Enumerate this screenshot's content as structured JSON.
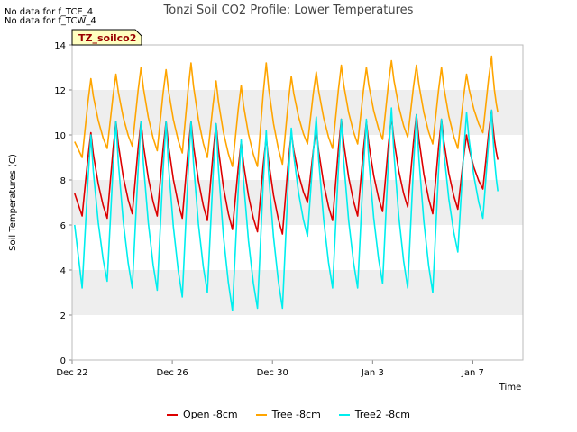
{
  "notes": [
    "No data for f_TCE_4",
    "No data for f_TCW_4"
  ],
  "site_label": "TZ_soilco2",
  "chart_data": {
    "type": "line",
    "title": "Tonzi Soil CO2 Profile: Lower Temperatures",
    "xlabel": "Time",
    "ylabel": "Soil Temperatures (C)",
    "xlim": [
      0,
      18
    ],
    "ylim": [
      0,
      14
    ],
    "x_ticks": [
      {
        "x": 0,
        "label": "Dec 22"
      },
      {
        "x": 4,
        "label": "Dec 26"
      },
      {
        "x": 8,
        "label": "Dec 30"
      },
      {
        "x": 12,
        "label": "Jan 3"
      },
      {
        "x": 16,
        "label": "Jan 7"
      }
    ],
    "y_ticks": [
      0,
      2,
      4,
      6,
      8,
      10,
      12,
      14
    ],
    "grid": "horizontal bands",
    "legend_position": "bottom",
    "series": [
      {
        "name": "Open -8cm",
        "color": "#dd0000",
        "days": [
          {
            "d": 0.4,
            "min": 6.4,
            "start": 7.4,
            "peak": 10.1
          },
          {
            "d": 1.4,
            "min": 6.3,
            "peak": 10.6
          },
          {
            "d": 2.4,
            "min": 6.5,
            "peak": 10.6
          },
          {
            "d": 3.4,
            "min": 6.4,
            "peak": 10.6
          },
          {
            "d": 4.4,
            "min": 6.3,
            "peak": 10.6
          },
          {
            "d": 5.4,
            "min": 6.2,
            "peak": 10.5
          },
          {
            "d": 6.4,
            "min": 5.8,
            "peak": 9.7
          },
          {
            "d": 7.4,
            "min": 5.7,
            "peak": 9.9
          },
          {
            "d": 8.4,
            "min": 5.6,
            "peak": 10.1
          },
          {
            "d": 9.4,
            "min": 7.0,
            "peak": 10.3
          },
          {
            "d": 10.4,
            "min": 6.2,
            "peak": 10.7
          },
          {
            "d": 11.4,
            "min": 6.4,
            "peak": 10.6
          },
          {
            "d": 12.4,
            "min": 6.6,
            "peak": 10.8
          },
          {
            "d": 13.4,
            "min": 6.8,
            "peak": 10.9
          },
          {
            "d": 14.4,
            "min": 6.5,
            "peak": 10.7
          },
          {
            "d": 15.4,
            "min": 6.7,
            "peak": 10.0
          },
          {
            "d": 16.4,
            "min": 7.6,
            "peak": 11.1
          },
          {
            "d": 17.0,
            "end": 8.9
          }
        ]
      },
      {
        "name": "Tree -8cm",
        "color": "#ffa500",
        "days": [
          {
            "d": 0.4,
            "min": 9.0,
            "start": 9.7,
            "peak": 12.5
          },
          {
            "d": 1.4,
            "min": 9.4,
            "peak": 12.7
          },
          {
            "d": 2.4,
            "min": 9.5,
            "peak": 13.0
          },
          {
            "d": 3.4,
            "min": 9.3,
            "peak": 12.9
          },
          {
            "d": 4.4,
            "min": 9.2,
            "peak": 13.2
          },
          {
            "d": 5.4,
            "min": 9.0,
            "peak": 12.4
          },
          {
            "d": 6.4,
            "min": 8.6,
            "peak": 12.2
          },
          {
            "d": 7.4,
            "min": 8.6,
            "peak": 13.2
          },
          {
            "d": 8.4,
            "min": 8.7,
            "peak": 12.6
          },
          {
            "d": 9.4,
            "min": 9.6,
            "peak": 12.8
          },
          {
            "d": 10.4,
            "min": 9.4,
            "peak": 13.1
          },
          {
            "d": 11.4,
            "min": 9.6,
            "peak": 13.0
          },
          {
            "d": 12.4,
            "min": 9.8,
            "peak": 13.3
          },
          {
            "d": 13.4,
            "min": 9.9,
            "peak": 13.1
          },
          {
            "d": 14.4,
            "min": 9.6,
            "peak": 13.0
          },
          {
            "d": 15.4,
            "min": 9.4,
            "peak": 12.7
          },
          {
            "d": 16.4,
            "min": 10.1,
            "peak": 13.5
          },
          {
            "d": 17.0,
            "end": 11.0
          }
        ]
      },
      {
        "name": "Tree2 -8cm",
        "color": "#00eeee",
        "days": [
          {
            "d": 0.4,
            "min": 3.2,
            "start": 6.0,
            "peak": 10.0
          },
          {
            "d": 1.4,
            "min": 3.5,
            "peak": 10.6
          },
          {
            "d": 2.4,
            "min": 3.2,
            "peak": 10.6
          },
          {
            "d": 3.4,
            "min": 3.1,
            "peak": 10.6
          },
          {
            "d": 4.4,
            "min": 2.8,
            "peak": 10.6
          },
          {
            "d": 5.4,
            "min": 3.0,
            "peak": 10.5
          },
          {
            "d": 6.4,
            "min": 2.2,
            "peak": 9.8
          },
          {
            "d": 7.4,
            "min": 2.3,
            "peak": 10.2
          },
          {
            "d": 8.4,
            "min": 2.3,
            "peak": 10.3
          },
          {
            "d": 9.4,
            "min": 5.5,
            "peak": 10.8
          },
          {
            "d": 10.4,
            "min": 3.2,
            "peak": 10.7
          },
          {
            "d": 11.4,
            "min": 3.2,
            "peak": 10.7
          },
          {
            "d": 12.4,
            "min": 3.4,
            "peak": 11.2
          },
          {
            "d": 13.4,
            "min": 3.2,
            "peak": 10.9
          },
          {
            "d": 14.4,
            "min": 3.0,
            "peak": 10.7
          },
          {
            "d": 15.4,
            "min": 4.8,
            "peak": 11.0
          },
          {
            "d": 16.4,
            "min": 6.3,
            "peak": 11.1
          },
          {
            "d": 17.0,
            "end": 7.5
          }
        ]
      }
    ]
  }
}
